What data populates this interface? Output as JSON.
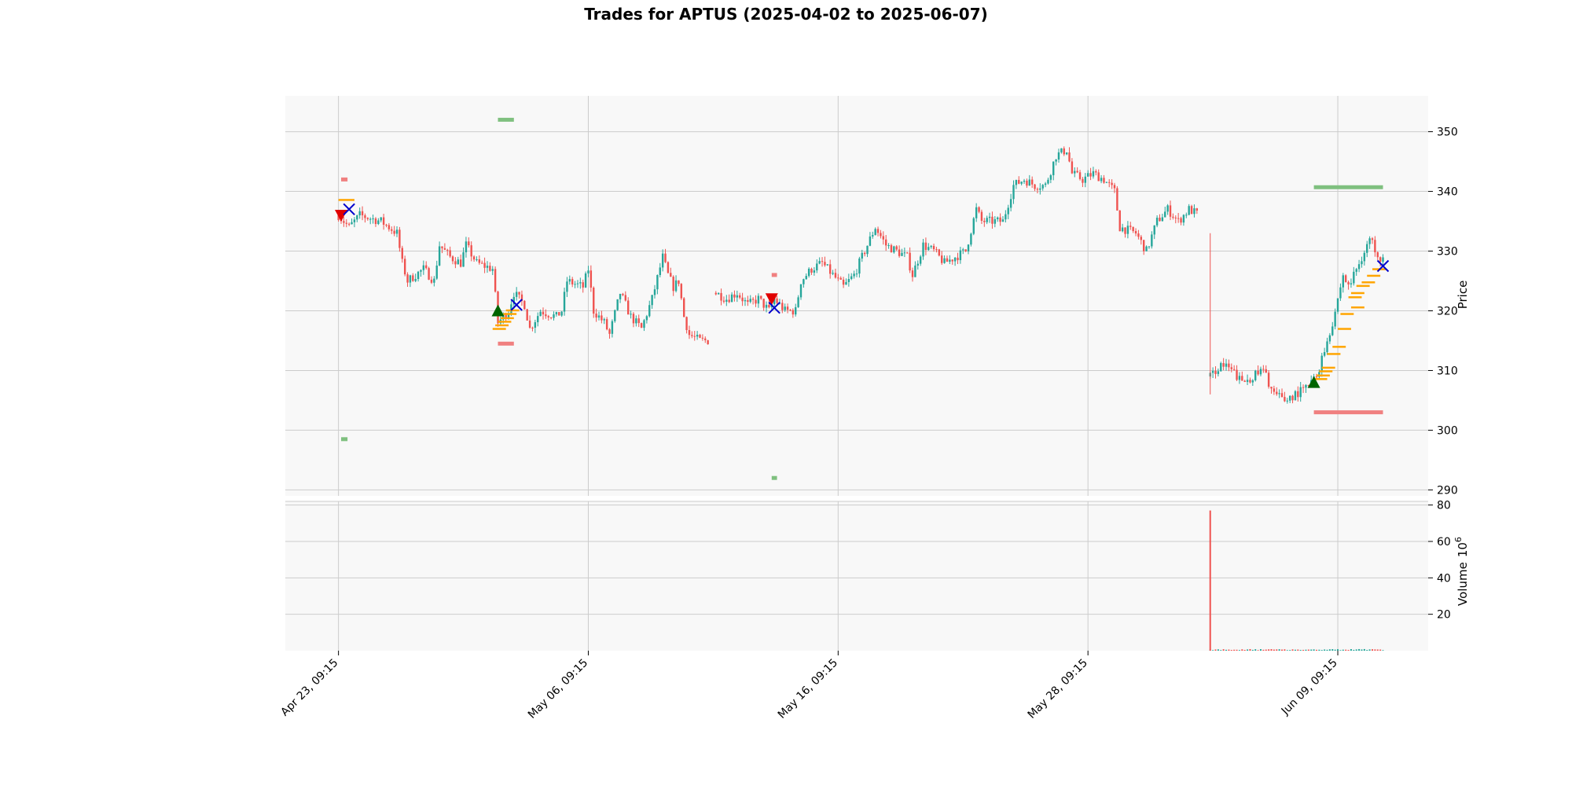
{
  "chart_data": {
    "type": "candlestick",
    "title": "Trades for APTUS (2025-04-02 to 2025-06-07)",
    "price_panel": {
      "ylabel": "Price",
      "ylim": [
        289,
        356
      ],
      "yticks": [
        290,
        300,
        310,
        320,
        330,
        340,
        350
      ],
      "grid": true
    },
    "volume_panel": {
      "ylabel": "Volume",
      "ylabel_exponent": "6",
      "ylabel_base": "10",
      "ylim": [
        0,
        82
      ],
      "yticks": [
        20,
        40,
        60,
        80
      ],
      "grid": true
    },
    "xlim": [
      -10,
      205
    ],
    "xticks": [
      {
        "label": "Apr 23, 09:15",
        "x": 0
      },
      {
        "label": "May 06, 09:15",
        "x": 47
      },
      {
        "label": "May 16, 09:15",
        "x": 94
      },
      {
        "label": "May 28, 09:15",
        "x": 141
      },
      {
        "label": "Jun 09, 09:15",
        "x": 188
      }
    ],
    "price_path": [
      {
        "x": 0,
        "p": 336
      },
      {
        "x": 2,
        "p": 334
      },
      {
        "x": 4,
        "p": 336
      },
      {
        "x": 8,
        "p": 335
      },
      {
        "x": 11,
        "p": 333
      },
      {
        "x": 12,
        "p": 328
      },
      {
        "x": 13,
        "p": 325
      },
      {
        "x": 16,
        "p": 327
      },
      {
        "x": 18,
        "p": 325
      },
      {
        "x": 19,
        "p": 331
      },
      {
        "x": 21,
        "p": 329
      },
      {
        "x": 23,
        "p": 328
      },
      {
        "x": 24,
        "p": 331
      },
      {
        "x": 26,
        "p": 328
      },
      {
        "x": 29,
        "p": 327
      },
      {
        "x": 30,
        "p": 318
      },
      {
        "x": 32,
        "p": 320
      },
      {
        "x": 33,
        "p": 323
      },
      {
        "x": 35,
        "p": 321
      },
      {
        "x": 36,
        "p": 317
      },
      {
        "x": 38,
        "p": 320
      },
      {
        "x": 41,
        "p": 319
      },
      {
        "x": 42,
        "p": 320
      },
      {
        "x": 43,
        "p": 325
      },
      {
        "x": 46,
        "p": 324
      },
      {
        "x": 47,
        "p": 327
      },
      {
        "x": 48,
        "p": 320
      },
      {
        "x": 50,
        "p": 318
      },
      {
        "x": 51,
        "p": 316
      },
      {
        "x": 53,
        "p": 323
      },
      {
        "x": 55,
        "p": 319
      },
      {
        "x": 57,
        "p": 317
      },
      {
        "x": 59,
        "p": 322
      },
      {
        "x": 61,
        "p": 329
      },
      {
        "x": 62,
        "p": 326
      },
      {
        "x": 63,
        "p": 324
      },
      {
        "x": 64,
        "p": 325
      },
      {
        "x": 65,
        "p": 319
      },
      {
        "x": 66,
        "p": 316
      },
      {
        "x": 68,
        "p": 315
      },
      {
        "x": 70,
        "p": 315
      }
    ],
    "price_path_2": [
      {
        "x": 71,
        "p": 323
      },
      {
        "x": 73,
        "p": 322
      },
      {
        "x": 75,
        "p": 323
      },
      {
        "x": 77,
        "p": 321
      },
      {
        "x": 79,
        "p": 322
      },
      {
        "x": 81,
        "p": 320
      },
      {
        "x": 82,
        "p": 322
      },
      {
        "x": 84,
        "p": 320
      },
      {
        "x": 86,
        "p": 320
      },
      {
        "x": 87,
        "p": 325
      },
      {
        "x": 89,
        "p": 327
      },
      {
        "x": 91,
        "p": 328
      },
      {
        "x": 93,
        "p": 326
      },
      {
        "x": 95,
        "p": 324
      },
      {
        "x": 97,
        "p": 326
      },
      {
        "x": 99,
        "p": 330
      },
      {
        "x": 101,
        "p": 334
      },
      {
        "x": 103,
        "p": 331
      },
      {
        "x": 105,
        "p": 330
      },
      {
        "x": 107,
        "p": 329
      },
      {
        "x": 108,
        "p": 326
      },
      {
        "x": 110,
        "p": 331
      },
      {
        "x": 112,
        "p": 330
      },
      {
        "x": 114,
        "p": 328
      },
      {
        "x": 116,
        "p": 329
      },
      {
        "x": 118,
        "p": 330
      },
      {
        "x": 120,
        "p": 337
      },
      {
        "x": 121,
        "p": 335
      },
      {
        "x": 125,
        "p": 335
      },
      {
        "x": 127,
        "p": 341
      },
      {
        "x": 129,
        "p": 342
      },
      {
        "x": 131,
        "p": 341
      },
      {
        "x": 133,
        "p": 341
      },
      {
        "x": 135,
        "p": 346
      },
      {
        "x": 137,
        "p": 347
      },
      {
        "x": 138,
        "p": 343
      },
      {
        "x": 140,
        "p": 342
      },
      {
        "x": 142,
        "p": 343
      },
      {
        "x": 144,
        "p": 342
      },
      {
        "x": 146,
        "p": 340
      },
      {
        "x": 147,
        "p": 334
      },
      {
        "x": 150,
        "p": 333
      },
      {
        "x": 152,
        "p": 330
      },
      {
        "x": 154,
        "p": 335
      },
      {
        "x": 156,
        "p": 337
      },
      {
        "x": 158,
        "p": 335
      },
      {
        "x": 160,
        "p": 337
      },
      {
        "x": 162,
        "p": 336
      }
    ],
    "price_path_3": [
      {
        "x": 164,
        "p": 309
      },
      {
        "x": 166,
        "p": 311
      },
      {
        "x": 168,
        "p": 310
      },
      {
        "x": 170,
        "p": 308
      },
      {
        "x": 172,
        "p": 309
      },
      {
        "x": 174,
        "p": 310
      },
      {
        "x": 176,
        "p": 306
      },
      {
        "x": 178,
        "p": 305
      },
      {
        "x": 180,
        "p": 306
      },
      {
        "x": 182,
        "p": 307
      },
      {
        "x": 184,
        "p": 309
      },
      {
        "x": 185,
        "p": 312
      },
      {
        "x": 186,
        "p": 315
      },
      {
        "x": 187,
        "p": 318
      },
      {
        "x": 188,
        "p": 322
      },
      {
        "x": 189,
        "p": 326
      },
      {
        "x": 190,
        "p": 324
      },
      {
        "x": 192,
        "p": 328
      },
      {
        "x": 194,
        "p": 332
      },
      {
        "x": 196,
        "p": 329
      },
      {
        "x": 197,
        "p": 330
      }
    ],
    "gap_wick": {
      "x": 164,
      "low": 306,
      "high": 333
    },
    "volume_spike": {
      "x": 164,
      "value": 77
    },
    "markers": {
      "sell_entry": [
        {
          "x": 0.5,
          "p": 336
        },
        {
          "x": 81.5,
          "p": 322
        }
      ],
      "buy_entry": [
        {
          "x": 30,
          "p": 320
        },
        {
          "x": 183.5,
          "p": 308
        }
      ],
      "exit": [
        {
          "x": 2,
          "p": 337
        },
        {
          "x": 33.5,
          "p": 321
        },
        {
          "x": 82,
          "p": 320.5
        },
        {
          "x": 196.5,
          "p": 327.5
        }
      ]
    },
    "levels": [
      {
        "kind": "take-profit",
        "color": "#7fc07f",
        "x0": 30,
        "x1": 33,
        "p": 352
      },
      {
        "kind": "stop-loss",
        "color": "#f08080",
        "x0": 30,
        "x1": 33,
        "p": 314.5
      },
      {
        "kind": "stop-loss",
        "color": "#f08080",
        "x0": 0.5,
        "x1": 1.7,
        "p": 342
      },
      {
        "kind": "take-profit",
        "color": "#7fc07f",
        "x0": 0.5,
        "x1": 1.7,
        "p": 298.5
      },
      {
        "kind": "stop-loss",
        "color": "#f08080",
        "x0": 81.5,
        "x1": 82.5,
        "p": 326
      },
      {
        "kind": "take-profit",
        "color": "#7fc07f",
        "x0": 81.5,
        "x1": 82.5,
        "p": 292
      },
      {
        "kind": "take-profit",
        "color": "#7fc07f",
        "x0": 183.5,
        "x1": 196.5,
        "p": 340.7
      },
      {
        "kind": "stop-loss",
        "color": "#f08080",
        "x0": 183.5,
        "x1": 196.5,
        "p": 303
      }
    ],
    "trailing_orange": [
      {
        "x": 0,
        "p": 338.6,
        "w": 3
      },
      {
        "x": 29,
        "p": 317.0,
        "w": 2.5
      },
      {
        "x": 29.5,
        "p": 317.6,
        "w": 2.5
      },
      {
        "x": 30,
        "p": 318.2,
        "w": 2.5
      },
      {
        "x": 30.5,
        "p": 318.8,
        "w": 2.5
      },
      {
        "x": 31,
        "p": 319.5,
        "w": 2.5
      },
      {
        "x": 31.5,
        "p": 320.1,
        "w": 2.5
      },
      {
        "x": 183.5,
        "p": 308.6,
        "w": 2.5
      },
      {
        "x": 184,
        "p": 309.2,
        "w": 2.5
      },
      {
        "x": 184.5,
        "p": 309.9,
        "w": 2.5
      },
      {
        "x": 185,
        "p": 310.5,
        "w": 2.5
      },
      {
        "x": 186,
        "p": 312.8,
        "w": 2.5
      },
      {
        "x": 187,
        "p": 314.0,
        "w": 2.5
      },
      {
        "x": 188,
        "p": 317.0,
        "w": 2.5
      },
      {
        "x": 188.5,
        "p": 319.5,
        "w": 2.5
      },
      {
        "x": 190.5,
        "p": 320.6,
        "w": 2.5
      },
      {
        "x": 190,
        "p": 322.3,
        "w": 2.5
      },
      {
        "x": 190.5,
        "p": 323.0,
        "w": 2.5
      },
      {
        "x": 191.5,
        "p": 324.2,
        "w": 2.5
      },
      {
        "x": 192.5,
        "p": 324.8,
        "w": 2.5
      },
      {
        "x": 193.5,
        "p": 325.9,
        "w": 2.5
      },
      {
        "x": 194.5,
        "p": 327.0,
        "w": 2.5
      }
    ],
    "colors": {
      "up": "#26a69a",
      "down": "#ef5350",
      "sell_marker": "#e00000",
      "buy_marker": "#006400",
      "exit_marker": "#0000cc",
      "trail": "#ffa500",
      "panel_bg": "#f8f8f8",
      "grid": "#cccccc"
    }
  }
}
